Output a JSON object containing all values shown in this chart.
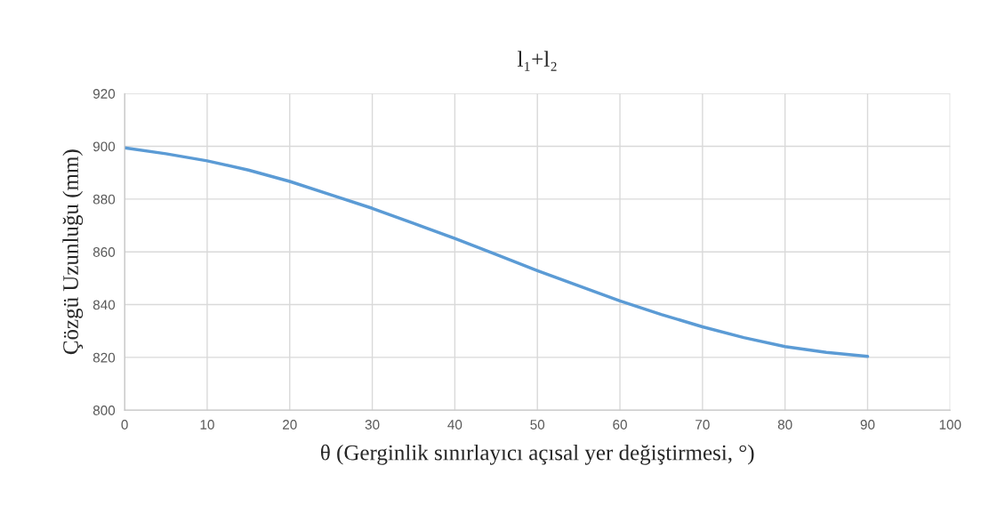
{
  "chart_data": {
    "type": "line",
    "title": "l₁+l₂",
    "xlabel": "θ (Gerginlik sınırlayıcı açısal yer değiştirmesi, °)",
    "ylabel": "Çözgü Uzunluğu (mm)",
    "x": [
      0,
      5,
      10,
      15,
      20,
      25,
      30,
      35,
      40,
      45,
      50,
      55,
      60,
      65,
      70,
      75,
      80,
      85,
      90
    ],
    "series": [
      {
        "color": "#5b9bd5",
        "values": [
          899.4,
          897.2,
          894.5,
          891,
          886.7,
          881.6,
          876.5,
          870.8,
          865.1,
          859,
          852.9,
          847.1,
          841.4,
          836.3,
          831.6,
          827.5,
          824.1,
          821.9,
          820.4
        ]
      }
    ],
    "xlim": [
      0,
      100
    ],
    "xticks": [
      0,
      10,
      20,
      30,
      40,
      50,
      60,
      70,
      80,
      90,
      100
    ],
    "ylim": [
      800,
      920
    ],
    "yticks": [
      800,
      820,
      840,
      860,
      880,
      900,
      920
    ],
    "grid": true,
    "marker": "none",
    "line_style": "solid"
  }
}
